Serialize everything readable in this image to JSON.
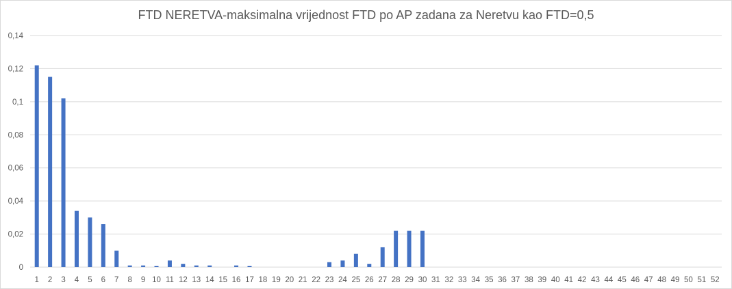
{
  "chart_data": {
    "type": "bar",
    "title": "FTD NERETVA-maksimalna vrijednost FTD po AP zadana za Neretvu kao FTD=0,5",
    "xlabel": "",
    "ylabel": "",
    "ylim": [
      0,
      0.14
    ],
    "y_ticks": [
      0,
      0.02,
      0.04,
      0.06,
      0.08,
      0.1,
      0.12,
      0.14
    ],
    "y_tick_labels": [
      "0",
      "0,02",
      "0,04",
      "0,06",
      "0,08",
      "0,1",
      "0,12",
      "0,14"
    ],
    "grid": true,
    "legend": "none",
    "bar_color": "#4472c4",
    "grid_color": "#d9d9d9",
    "categories": [
      "1",
      "2",
      "3",
      "4",
      "5",
      "6",
      "7",
      "8",
      "9",
      "10",
      "11",
      "12",
      "13",
      "14",
      "15",
      "16",
      "17",
      "18",
      "19",
      "20",
      "21",
      "22",
      "23",
      "24",
      "25",
      "26",
      "27",
      "28",
      "29",
      "30",
      "31",
      "32",
      "33",
      "34",
      "35",
      "36",
      "37",
      "38",
      "39",
      "40",
      "41",
      "42",
      "43",
      "44",
      "45",
      "46",
      "47",
      "48",
      "49",
      "50",
      "51",
      "52"
    ],
    "values": [
      0.122,
      0.115,
      0.102,
      0.034,
      0.03,
      0.026,
      0.01,
      0.001,
      0.001,
      0.0008,
      0.004,
      0.002,
      0.001,
      0.001,
      0,
      0.001,
      0.0008,
      0,
      0,
      0,
      0,
      0,
      0.003,
      0.004,
      0.008,
      0.002,
      0.012,
      0.022,
      0.022,
      0.022,
      0,
      0,
      0,
      0,
      0,
      0,
      0,
      0,
      0,
      0,
      0,
      0,
      0,
      0,
      0,
      0,
      0,
      0,
      0,
      0,
      0,
      0
    ]
  }
}
